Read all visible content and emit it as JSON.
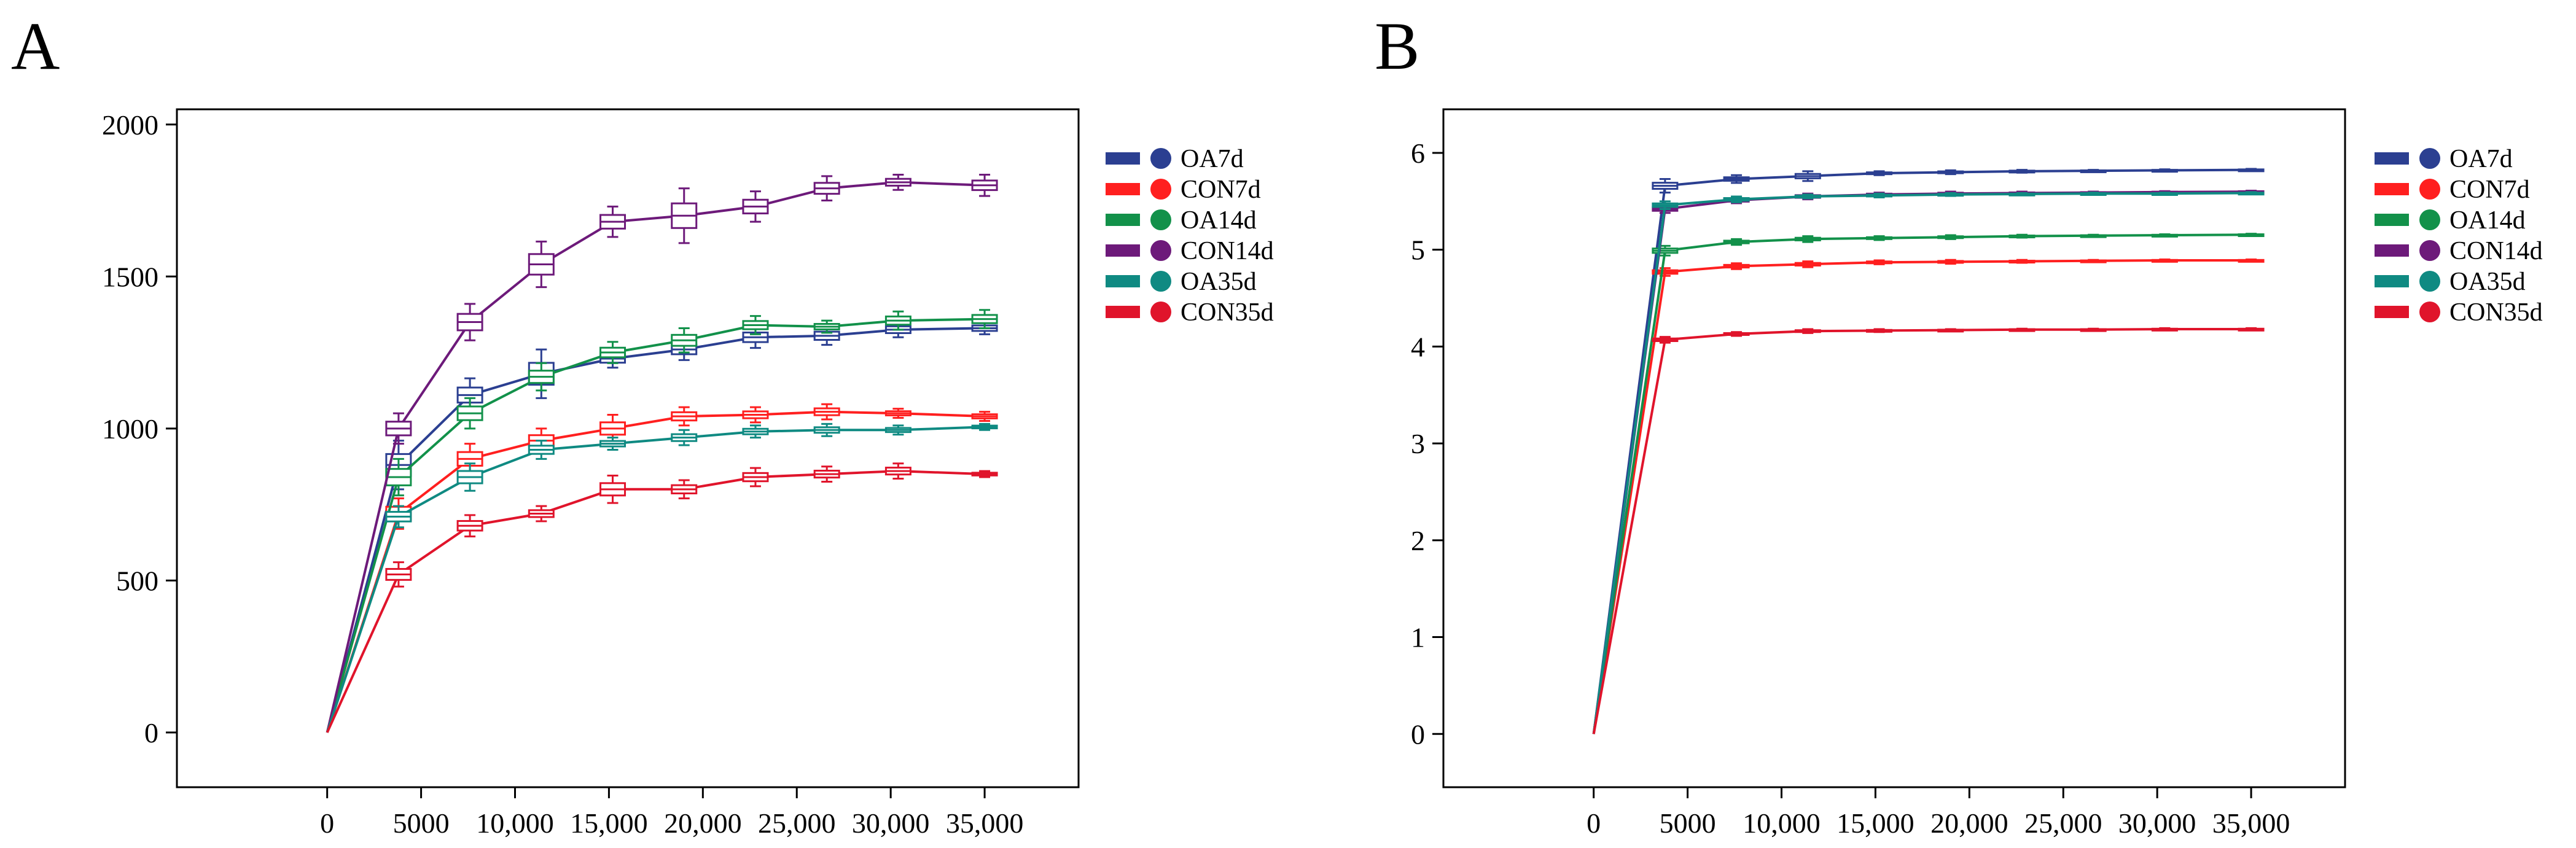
{
  "chart_data": [
    {
      "type": "line",
      "panel": "A",
      "title": "",
      "xlabel": "",
      "ylabel": "",
      "xlim": [
        -8000,
        40000
      ],
      "ylim": [
        -180,
        2050
      ],
      "x_ticks": [
        {
          "value": 0,
          "label": "0"
        },
        {
          "value": 5000,
          "label": "5000"
        },
        {
          "value": 10000,
          "label": "10,000"
        },
        {
          "value": 15000,
          "label": "15,000"
        },
        {
          "value": 20000,
          "label": "20,000"
        },
        {
          "value": 25000,
          "label": "25,000"
        },
        {
          "value": 30000,
          "label": "30,000"
        },
        {
          "value": 35000,
          "label": "35,000"
        }
      ],
      "y_ticks": [
        {
          "value": 0,
          "label": "0"
        },
        {
          "value": 500,
          "label": "500"
        },
        {
          "value": 1000,
          "label": "1000"
        },
        {
          "value": 1500,
          "label": "1500"
        },
        {
          "value": 2000,
          "label": "2000"
        }
      ],
      "x": [
        0,
        3800,
        7600,
        11400,
        15200,
        19000,
        22800,
        26600,
        30400,
        35000
      ],
      "series": [
        {
          "name": "OA7d",
          "color": "#2b3f91",
          "values": [
            0,
            880,
            1110,
            1180,
            1230,
            1260,
            1300,
            1305,
            1325,
            1330
          ],
          "spread": [
            0,
            80,
            55,
            80,
            30,
            35,
            35,
            30,
            25,
            20
          ]
        },
        {
          "name": "CON7d",
          "color": "#ff1f1f",
          "values": [
            0,
            720,
            900,
            960,
            1000,
            1040,
            1045,
            1055,
            1050,
            1040
          ],
          "spread": [
            0,
            50,
            50,
            40,
            45,
            30,
            25,
            25,
            15,
            15
          ]
        },
        {
          "name": "OA14d",
          "color": "#12914a",
          "values": [
            0,
            840,
            1050,
            1170,
            1250,
            1290,
            1340,
            1335,
            1355,
            1360
          ],
          "spread": [
            0,
            60,
            50,
            45,
            35,
            40,
            30,
            20,
            30,
            30
          ]
        },
        {
          "name": "CON14d",
          "color": "#6d1a7a",
          "values": [
            0,
            1000,
            1350,
            1540,
            1680,
            1700,
            1730,
            1790,
            1810,
            1800
          ],
          "spread": [
            0,
            50,
            60,
            75,
            50,
            90,
            50,
            40,
            25,
            35
          ]
        },
        {
          "name": "OA35d",
          "color": "#0f8a82",
          "values": [
            0,
            710,
            840,
            930,
            950,
            970,
            990,
            995,
            995,
            1005
          ],
          "spread": [
            0,
            35,
            45,
            30,
            20,
            25,
            20,
            20,
            15,
            10
          ]
        },
        {
          "name": "CON35d",
          "color": "#e0142b",
          "values": [
            0,
            520,
            680,
            720,
            800,
            800,
            840,
            850,
            860,
            850
          ],
          "spread": [
            0,
            40,
            35,
            25,
            45,
            30,
            30,
            25,
            25,
            10
          ]
        }
      ],
      "legend": "right"
    },
    {
      "type": "line",
      "panel": "B",
      "title": "",
      "xlabel": "",
      "ylabel": "",
      "xlim": [
        -8000,
        40000
      ],
      "ylim": [
        -0.55,
        6.45
      ],
      "x_ticks": [
        {
          "value": 0,
          "label": "0"
        },
        {
          "value": 5000,
          "label": "5000"
        },
        {
          "value": 10000,
          "label": "10,000"
        },
        {
          "value": 15000,
          "label": "15,000"
        },
        {
          "value": 20000,
          "label": "20,000"
        },
        {
          "value": 25000,
          "label": "25,000"
        },
        {
          "value": 30000,
          "label": "30,000"
        },
        {
          "value": 35000,
          "label": "35,000"
        }
      ],
      "y_ticks": [
        {
          "value": 0,
          "label": "0"
        },
        {
          "value": 1,
          "label": "1"
        },
        {
          "value": 2,
          "label": "2"
        },
        {
          "value": 3,
          "label": "3"
        },
        {
          "value": 4,
          "label": "4"
        },
        {
          "value": 5,
          "label": "5"
        },
        {
          "value": 6,
          "label": "6"
        }
      ],
      "x": [
        0,
        3800,
        7600,
        11400,
        15200,
        19000,
        22800,
        26600,
        30400,
        35000
      ],
      "series": [
        {
          "name": "OA7d",
          "color": "#2b3f91",
          "values": [
            0,
            5.66,
            5.73,
            5.76,
            5.79,
            5.8,
            5.81,
            5.815,
            5.82,
            5.825
          ],
          "spread": [
            0,
            0.07,
            0.04,
            0.05,
            0.02,
            0.02,
            0.015,
            0.01,
            0.01,
            0.01
          ]
        },
        {
          "name": "CON7d",
          "color": "#ff1f1f",
          "values": [
            0,
            4.77,
            4.83,
            4.85,
            4.87,
            4.875,
            4.88,
            4.885,
            4.89,
            4.89
          ],
          "spread": [
            0,
            0.04,
            0.03,
            0.03,
            0.02,
            0.02,
            0.015,
            0.01,
            0.01,
            0.01
          ]
        },
        {
          "name": "OA14d",
          "color": "#12914a",
          "values": [
            0,
            4.99,
            5.08,
            5.11,
            5.12,
            5.13,
            5.14,
            5.145,
            5.15,
            5.155
          ],
          "spread": [
            0,
            0.05,
            0.03,
            0.03,
            0.02,
            0.02,
            0.015,
            0.01,
            0.01,
            0.01
          ]
        },
        {
          "name": "CON14d",
          "color": "#6d1a7a",
          "values": [
            0,
            5.42,
            5.51,
            5.55,
            5.57,
            5.58,
            5.585,
            5.59,
            5.595,
            5.6
          ],
          "spread": [
            0,
            0.04,
            0.03,
            0.03,
            0.02,
            0.02,
            0.015,
            0.01,
            0.01,
            0.01
          ]
        },
        {
          "name": "OA35d",
          "color": "#0f8a82",
          "values": [
            0,
            5.46,
            5.52,
            5.55,
            5.56,
            5.57,
            5.575,
            5.58,
            5.58,
            5.585
          ],
          "spread": [
            0,
            0.04,
            0.03,
            0.02,
            0.02,
            0.015,
            0.01,
            0.01,
            0.01,
            0.01
          ]
        },
        {
          "name": "CON35d",
          "color": "#e0142b",
          "values": [
            0,
            4.07,
            4.13,
            4.16,
            4.165,
            4.17,
            4.175,
            4.175,
            4.18,
            4.18
          ],
          "spread": [
            0,
            0.03,
            0.02,
            0.02,
            0.015,
            0.01,
            0.01,
            0.01,
            0.01,
            0.01
          ]
        }
      ],
      "legend": "right"
    }
  ]
}
